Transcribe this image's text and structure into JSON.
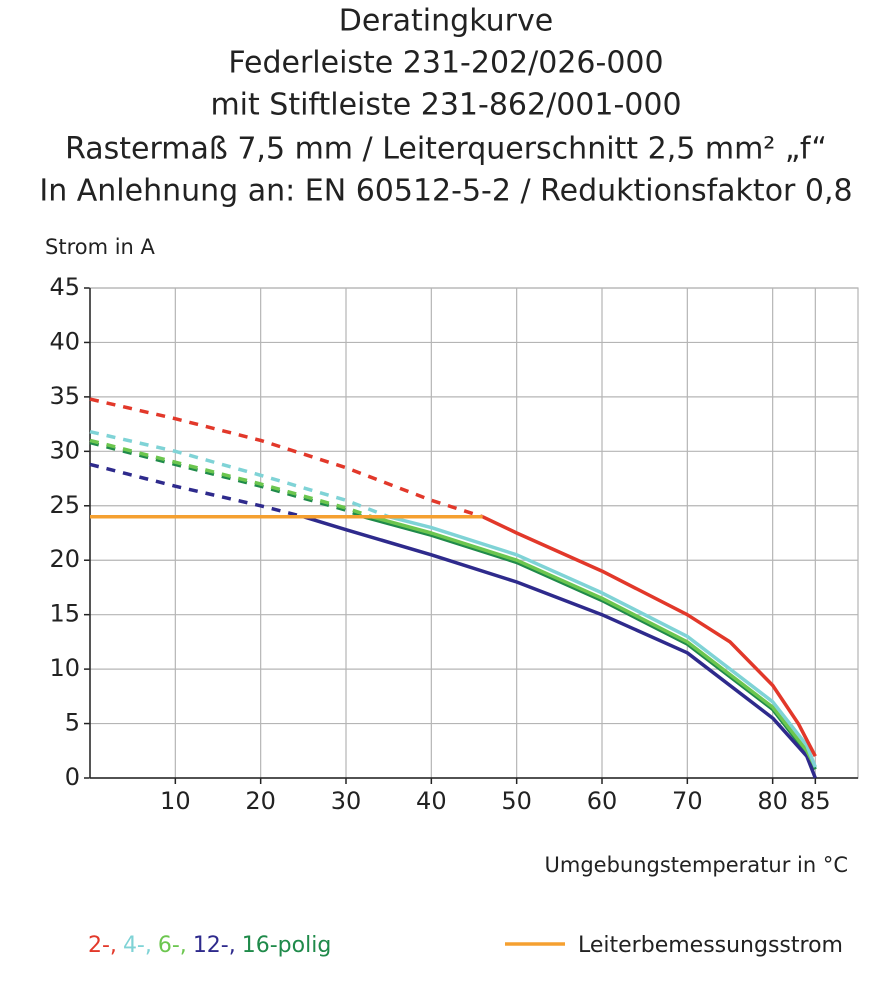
{
  "chart_data": {
    "type": "line",
    "title": [
      "Deratingkurve",
      "Federleiste 231-202/026-000",
      "mit Stiftleiste 231-862/001-000",
      "Rastermaß 7,5 mm / Leiterquerschnitt 2,5 mm² „f“",
      "In Anlehnung an: EN 60512-5-2 / Reduktionsfaktor 0,8"
    ],
    "y_label": "Strom in A",
    "x_label": "Umgebungstemperatur in °C",
    "xlim": [
      0,
      90
    ],
    "xticks": [
      10,
      20,
      30,
      40,
      50,
      60,
      70,
      80,
      85
    ],
    "ylim": [
      0,
      45
    ],
    "yticks": [
      0,
      5,
      10,
      15,
      20,
      25,
      30,
      35,
      40,
      45
    ],
    "grid": true,
    "series": [
      {
        "name": "2-,",
        "color": "#e2382a",
        "x": [
          0,
          10,
          20,
          30,
          40,
          46,
          50,
          60,
          70,
          75,
          80,
          83,
          85
        ],
        "values": [
          34.8,
          33,
          31,
          28.5,
          25.5,
          24,
          22.5,
          19,
          15,
          12.5,
          8.5,
          5,
          2
        ]
      },
      {
        "name": "4-,",
        "color": "#7fd3d6",
        "x": [
          0,
          10,
          20,
          30,
          35,
          40,
          50,
          60,
          70,
          80,
          84,
          85
        ],
        "values": [
          31.8,
          30,
          27.8,
          25.5,
          24,
          23,
          20.5,
          17,
          13,
          7,
          3,
          1
        ]
      },
      {
        "name": "6-,",
        "color": "#6cc64f",
        "x": [
          0,
          10,
          20,
          30,
          33,
          40,
          50,
          60,
          70,
          80,
          84,
          85
        ],
        "values": [
          31,
          29,
          27,
          24.8,
          24,
          22.5,
          20,
          16.5,
          12.5,
          6.5,
          2.5,
          1
        ]
      },
      {
        "name": "12-,",
        "color": "#2e2a8c",
        "x": [
          0,
          10,
          20,
          25,
          30,
          40,
          50,
          60,
          70,
          80,
          84,
          85
        ],
        "values": [
          28.8,
          26.8,
          25,
          24,
          22.8,
          20.5,
          18,
          15,
          11.5,
          5.5,
          2,
          0
        ]
      },
      {
        "name": "16-polig",
        "color": "#1f8a4a",
        "x": [
          0,
          10,
          20,
          30,
          32,
          40,
          50,
          60,
          70,
          80,
          84,
          85
        ],
        "values": [
          30.8,
          28.8,
          26.8,
          24.6,
          24,
          22.3,
          19.8,
          16.3,
          12.3,
          6.3,
          2.3,
          0.8
        ]
      },
      {
        "name": "Leiterbemessungsstrom",
        "color": "#f5a030",
        "x": [
          0,
          46
        ],
        "values": [
          24,
          24
        ],
        "limit": true
      }
    ]
  }
}
